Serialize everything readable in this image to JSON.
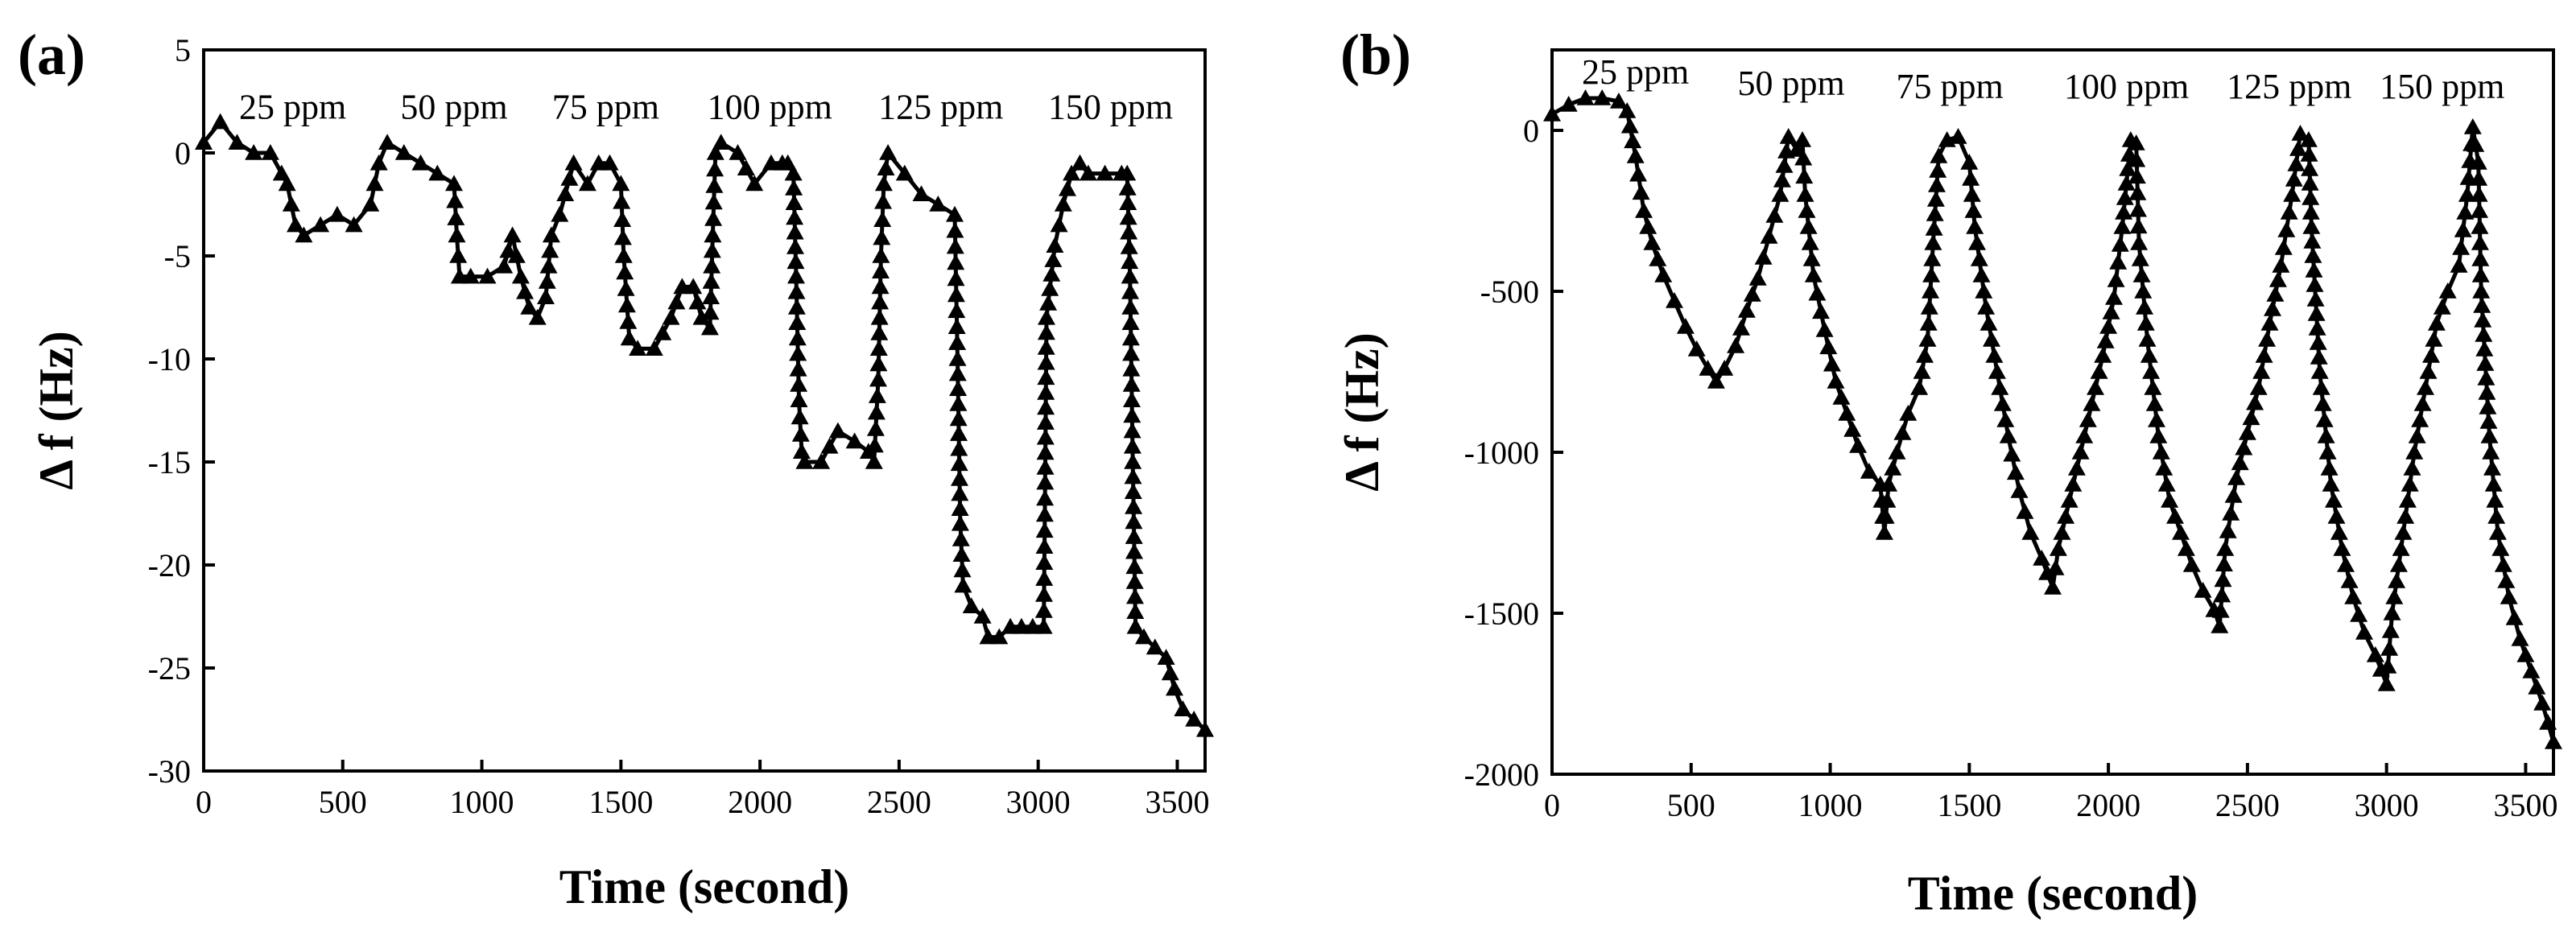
{
  "chart_data": [
    {
      "panel": "(a)",
      "type": "scatter",
      "marker": "triangle",
      "color": "#000000",
      "xlabel": "Time (second)",
      "ylabel": "Δ f (Hz)",
      "xlim": [
        0,
        3600
      ],
      "ylim": [
        -30,
        5
      ],
      "xticks": [
        0,
        500,
        1000,
        1500,
        2000,
        2500,
        3000,
        3500
      ],
      "yticks": [
        5,
        0,
        -5,
        -10,
        -15,
        -20,
        -25,
        -30
      ],
      "annotations": [
        {
          "text": "25 ppm",
          "x": 320,
          "y": 2.2
        },
        {
          "text": "50 ppm",
          "x": 900,
          "y": 2.2
        },
        {
          "text": "75 ppm",
          "x": 1445,
          "y": 2.2
        },
        {
          "text": "100 ppm",
          "x": 2035,
          "y": 2.2
        },
        {
          "text": "125 ppm",
          "x": 2650,
          "y": 2.2
        },
        {
          "text": "150 ppm",
          "x": 3260,
          "y": 2.2
        }
      ],
      "points": [
        [
          0,
          0.5
        ],
        [
          60,
          1.5
        ],
        [
          120,
          0.5
        ],
        [
          180,
          0
        ],
        [
          240,
          0
        ],
        [
          280,
          -1
        ],
        [
          300,
          -1.5
        ],
        [
          330,
          -3.5
        ],
        [
          360,
          -4
        ],
        [
          420,
          -3.5
        ],
        [
          480,
          -3
        ],
        [
          540,
          -3.5
        ],
        [
          600,
          -2.5
        ],
        [
          630,
          -0.5
        ],
        [
          660,
          0.5
        ],
        [
          720,
          0
        ],
        [
          780,
          -0.5
        ],
        [
          840,
          -1
        ],
        [
          900,
          -1.5
        ],
        [
          910,
          -4
        ],
        [
          920,
          -6
        ],
        [
          960,
          -6
        ],
        [
          1020,
          -6
        ],
        [
          1080,
          -5.5
        ],
        [
          1110,
          -4
        ],
        [
          1140,
          -6
        ],
        [
          1170,
          -7.5
        ],
        [
          1200,
          -8
        ],
        [
          1230,
          -7
        ],
        [
          1250,
          -4
        ],
        [
          1280,
          -3
        ],
        [
          1300,
          -2
        ],
        [
          1330,
          -0.5
        ],
        [
          1380,
          -1.5
        ],
        [
          1420,
          -0.5
        ],
        [
          1460,
          -0.5
        ],
        [
          1500,
          -1.5
        ],
        [
          1510,
          -5
        ],
        [
          1530,
          -9
        ],
        [
          1560,
          -9.5
        ],
        [
          1620,
          -9.5
        ],
        [
          1680,
          -8
        ],
        [
          1720,
          -6.5
        ],
        [
          1760,
          -6.5
        ],
        [
          1790,
          -8
        ],
        [
          1820,
          -8.5
        ],
        [
          1830,
          -4
        ],
        [
          1840,
          0
        ],
        [
          1860,
          0.5
        ],
        [
          1920,
          0
        ],
        [
          1980,
          -1.5
        ],
        [
          2040,
          -0.5
        ],
        [
          2080,
          -0.5
        ],
        [
          2100,
          -0.5
        ],
        [
          2120,
          -1
        ],
        [
          2130,
          -6
        ],
        [
          2140,
          -12
        ],
        [
          2150,
          -14.5
        ],
        [
          2160,
          -15
        ],
        [
          2220,
          -15
        ],
        [
          2280,
          -13.5
        ],
        [
          2340,
          -14
        ],
        [
          2390,
          -14.5
        ],
        [
          2410,
          -15
        ],
        [
          2425,
          -11
        ],
        [
          2435,
          -5
        ],
        [
          2445,
          -1.5
        ],
        [
          2460,
          0
        ],
        [
          2520,
          -1
        ],
        [
          2580,
          -2
        ],
        [
          2640,
          -2.5
        ],
        [
          2700,
          -3
        ],
        [
          2710,
          -10
        ],
        [
          2720,
          -18
        ],
        [
          2730,
          -21
        ],
        [
          2760,
          -22
        ],
        [
          2800,
          -22.5
        ],
        [
          2820,
          -23.5
        ],
        [
          2860,
          -23.5
        ],
        [
          2900,
          -23
        ],
        [
          2940,
          -23
        ],
        [
          2980,
          -23
        ],
        [
          3020,
          -23
        ],
        [
          3025,
          -16
        ],
        [
          3030,
          -8
        ],
        [
          3060,
          -4.5
        ],
        [
          3090,
          -2.5
        ],
        [
          3120,
          -1
        ],
        [
          3150,
          -0.5
        ],
        [
          3180,
          -1
        ],
        [
          3240,
          -1
        ],
        [
          3300,
          -1
        ],
        [
          3320,
          -1
        ],
        [
          3330,
          -6
        ],
        [
          3340,
          -15
        ],
        [
          3350,
          -23
        ],
        [
          3380,
          -23.5
        ],
        [
          3420,
          -24
        ],
        [
          3460,
          -24.5
        ],
        [
          3490,
          -26
        ],
        [
          3520,
          -27
        ],
        [
          3560,
          -27.5
        ],
        [
          3600,
          -28
        ]
      ]
    },
    {
      "panel": "(b)",
      "type": "scatter",
      "marker": "triangle",
      "color": "#000000",
      "xlabel": "Time (second)",
      "ylabel": "Δ f (Hz)",
      "xlim": [
        0,
        3600
      ],
      "ylim": [
        -2000,
        250
      ],
      "xticks": [
        0,
        500,
        1000,
        1500,
        2000,
        2500,
        3000,
        3500
      ],
      "yticks": [
        0,
        -500,
        -1000,
        -1500,
        -2000
      ],
      "annotations": [
        {
          "text": "25 ppm",
          "x": 300,
          "y": 180
        },
        {
          "text": "50 ppm",
          "x": 860,
          "y": 145
        },
        {
          "text": "75 ppm",
          "x": 1430,
          "y": 135
        },
        {
          "text": "100 ppm",
          "x": 2065,
          "y": 135
        },
        {
          "text": "125 ppm",
          "x": 2650,
          "y": 135
        },
        {
          "text": "150 ppm",
          "x": 3200,
          "y": 135
        }
      ],
      "points": [
        [
          0,
          50
        ],
        [
          60,
          80
        ],
        [
          120,
          100
        ],
        [
          180,
          100
        ],
        [
          240,
          90
        ],
        [
          270,
          60
        ],
        [
          300,
          -80
        ],
        [
          330,
          -250
        ],
        [
          360,
          -350
        ],
        [
          400,
          -450
        ],
        [
          440,
          -530
        ],
        [
          480,
          -610
        ],
        [
          520,
          -680
        ],
        [
          560,
          -740
        ],
        [
          590,
          -780
        ],
        [
          620,
          -740
        ],
        [
          660,
          -670
        ],
        [
          700,
          -560
        ],
        [
          740,
          -460
        ],
        [
          780,
          -330
        ],
        [
          820,
          -200
        ],
        [
          850,
          -20
        ],
        [
          880,
          -60
        ],
        [
          900,
          -30
        ],
        [
          910,
          -200
        ],
        [
          940,
          -450
        ],
        [
          980,
          -620
        ],
        [
          1020,
          -780
        ],
        [
          1060,
          -880
        ],
        [
          1100,
          -980
        ],
        [
          1140,
          -1060
        ],
        [
          1180,
          -1100
        ],
        [
          1195,
          -1250
        ],
        [
          1210,
          -1100
        ],
        [
          1240,
          -1000
        ],
        [
          1280,
          -880
        ],
        [
          1320,
          -800
        ],
        [
          1350,
          -650
        ],
        [
          1370,
          -350
        ],
        [
          1390,
          -80
        ],
        [
          1420,
          -30
        ],
        [
          1460,
          -20
        ],
        [
          1500,
          -100
        ],
        [
          1520,
          -300
        ],
        [
          1560,
          -550
        ],
        [
          1600,
          -750
        ],
        [
          1640,
          -950
        ],
        [
          1680,
          -1120
        ],
        [
          1720,
          -1250
        ],
        [
          1760,
          -1330
        ],
        [
          1800,
          -1420
        ],
        [
          1820,
          -1300
        ],
        [
          1860,
          -1150
        ],
        [
          1900,
          -1000
        ],
        [
          1940,
          -850
        ],
        [
          1980,
          -700
        ],
        [
          2020,
          -520
        ],
        [
          2050,
          -300
        ],
        [
          2080,
          -30
        ],
        [
          2100,
          -40
        ],
        [
          2110,
          -350
        ],
        [
          2140,
          -650
        ],
        [
          2180,
          -950
        ],
        [
          2220,
          -1150
        ],
        [
          2260,
          -1250
        ],
        [
          2300,
          -1350
        ],
        [
          2340,
          -1430
        ],
        [
          2380,
          -1490
        ],
        [
          2400,
          -1540
        ],
        [
          2420,
          -1300
        ],
        [
          2460,
          -1080
        ],
        [
          2500,
          -940
        ],
        [
          2540,
          -800
        ],
        [
          2580,
          -600
        ],
        [
          2620,
          -420
        ],
        [
          2660,
          -200
        ],
        [
          2690,
          -10
        ],
        [
          2720,
          -30
        ],
        [
          2730,
          -300
        ],
        [
          2760,
          -750
        ],
        [
          2800,
          -1100
        ],
        [
          2840,
          -1300
        ],
        [
          2880,
          -1450
        ],
        [
          2920,
          -1560
        ],
        [
          2960,
          -1630
        ],
        [
          3000,
          -1720
        ],
        [
          3020,
          -1500
        ],
        [
          3060,
          -1250
        ],
        [
          3100,
          -1000
        ],
        [
          3140,
          -800
        ],
        [
          3180,
          -600
        ],
        [
          3220,
          -500
        ],
        [
          3260,
          -420
        ],
        [
          3290,
          -200
        ],
        [
          3310,
          10
        ],
        [
          3330,
          -100
        ],
        [
          3340,
          -500
        ],
        [
          3370,
          -950
        ],
        [
          3400,
          -1250
        ],
        [
          3440,
          -1450
        ],
        [
          3480,
          -1580
        ],
        [
          3520,
          -1680
        ],
        [
          3560,
          -1780
        ],
        [
          3600,
          -1900
        ]
      ]
    }
  ]
}
